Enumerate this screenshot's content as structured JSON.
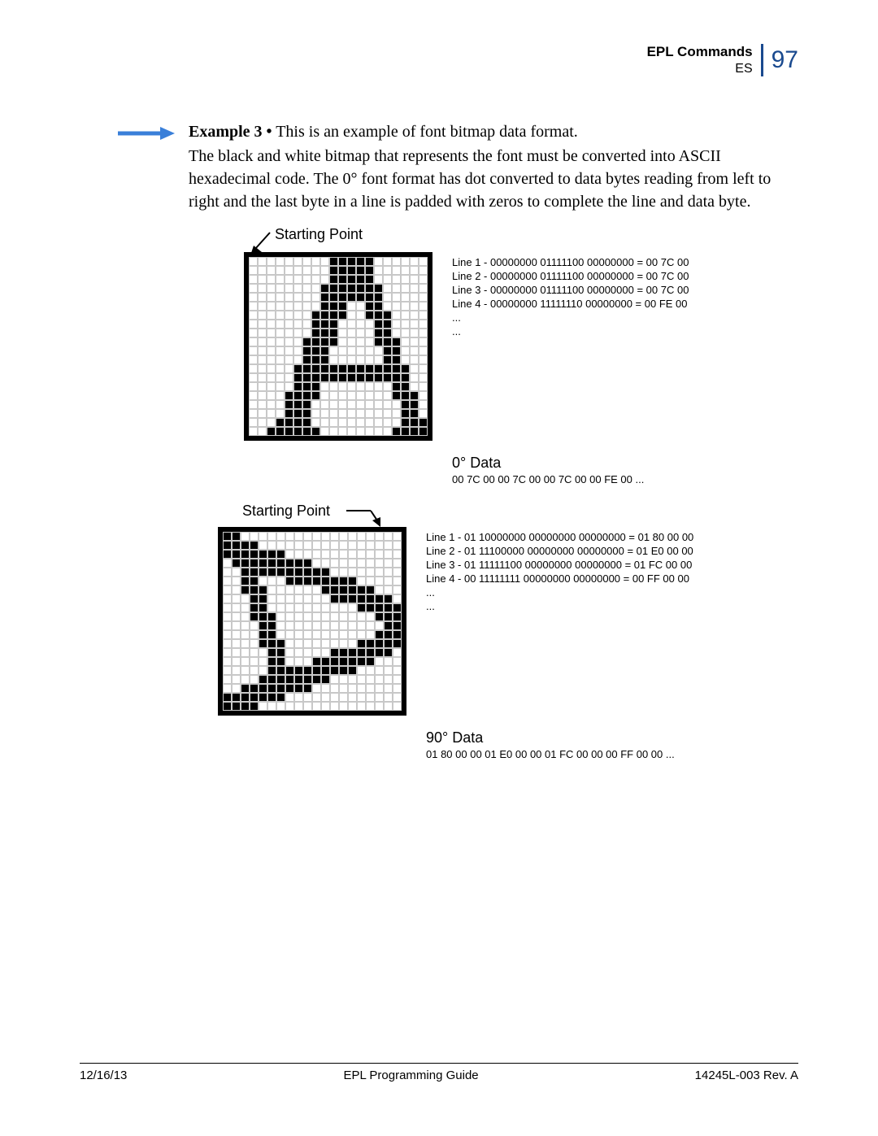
{
  "header": {
    "title": "EPL Commands",
    "sub": "ES",
    "page": "97"
  },
  "example": {
    "label": "Example 3 •",
    "text": "This is an example of font bitmap data format.",
    "body": "The black and white bitmap that represents the font must be converted into ASCII hexadecimal code. The 0° font format has dot converted to data bytes reading from left to right and the last byte in a line is padded with zeros to complete the line and data byte."
  },
  "fig0": {
    "starting_point": "Starting Point",
    "lines": {
      "l1": "Line 1 - 00000000 01111100 00000000 = 00 7C 00",
      "l2": "Line 2 - 00000000 01111100 00000000 = 00 7C 00",
      "l3": "Line 3 - 00000000 01111100 00000000 = 00 7C 00",
      "l4": "Line 4 - 00000000 11111110 00000000 = 00 FE 00",
      "l5": "...",
      "l6": "..."
    },
    "heading": "0° Data",
    "stream": "00 7C 00 00 7C 00 00 7C 00 00 FE 00 ..."
  },
  "fig90": {
    "starting_point": "Starting Point",
    "lines": {
      "l1": "Line 1 - 01 10000000 00000000 00000000 = 01 80 00 00",
      "l2": "Line 2 - 01 11100000 00000000 00000000 = 01 E0 00 00",
      "l3": "Line 3 - 01 11111100 00000000 00000000 = 01 FC 00 00",
      "l4": "Line 4 - 00 11111111 00000000 00000000 = 00 FF 00 00",
      "l5": "...",
      "l6": "..."
    },
    "heading": "90° Data",
    "stream": "01 80 00 00 01 E0 00 00 01 FC 00 00 00 FF 00 00 ..."
  },
  "footer": {
    "date": "12/16/13",
    "center": "EPL Programming Guide",
    "right": "14245L-003 Rev. A"
  },
  "colors": {
    "accent": "#1a4a8f",
    "grid": "#c8c8c8"
  },
  "grid0": {
    "cols": 20,
    "rows": 20,
    "on": [
      [
        0,
        9
      ],
      [
        0,
        10
      ],
      [
        0,
        11
      ],
      [
        0,
        12
      ],
      [
        0,
        13
      ],
      [
        1,
        9
      ],
      [
        1,
        10
      ],
      [
        1,
        11
      ],
      [
        1,
        12
      ],
      [
        1,
        13
      ],
      [
        2,
        9
      ],
      [
        2,
        10
      ],
      [
        2,
        11
      ],
      [
        2,
        12
      ],
      [
        2,
        13
      ],
      [
        3,
        8
      ],
      [
        3,
        9
      ],
      [
        3,
        10
      ],
      [
        3,
        11
      ],
      [
        3,
        12
      ],
      [
        3,
        13
      ],
      [
        3,
        14
      ],
      [
        4,
        8
      ],
      [
        4,
        9
      ],
      [
        4,
        10
      ],
      [
        4,
        11
      ],
      [
        4,
        12
      ],
      [
        4,
        13
      ],
      [
        4,
        14
      ],
      [
        5,
        8
      ],
      [
        5,
        9
      ],
      [
        5,
        10
      ],
      [
        5,
        13
      ],
      [
        5,
        14
      ],
      [
        6,
        7
      ],
      [
        6,
        8
      ],
      [
        6,
        9
      ],
      [
        6,
        10
      ],
      [
        6,
        13
      ],
      [
        6,
        14
      ],
      [
        6,
        15
      ],
      [
        7,
        7
      ],
      [
        7,
        8
      ],
      [
        7,
        9
      ],
      [
        7,
        14
      ],
      [
        7,
        15
      ],
      [
        8,
        7
      ],
      [
        8,
        8
      ],
      [
        8,
        9
      ],
      [
        8,
        14
      ],
      [
        8,
        15
      ],
      [
        9,
        6
      ],
      [
        9,
        7
      ],
      [
        9,
        8
      ],
      [
        9,
        9
      ],
      [
        9,
        14
      ],
      [
        9,
        15
      ],
      [
        9,
        16
      ],
      [
        10,
        6
      ],
      [
        10,
        7
      ],
      [
        10,
        8
      ],
      [
        10,
        15
      ],
      [
        10,
        16
      ],
      [
        11,
        6
      ],
      [
        11,
        7
      ],
      [
        11,
        8
      ],
      [
        11,
        15
      ],
      [
        11,
        16
      ],
      [
        12,
        5
      ],
      [
        12,
        6
      ],
      [
        12,
        7
      ],
      [
        12,
        8
      ],
      [
        12,
        9
      ],
      [
        12,
        10
      ],
      [
        12,
        11
      ],
      [
        12,
        12
      ],
      [
        12,
        13
      ],
      [
        12,
        14
      ],
      [
        12,
        15
      ],
      [
        12,
        16
      ],
      [
        12,
        17
      ],
      [
        13,
        5
      ],
      [
        13,
        6
      ],
      [
        13,
        7
      ],
      [
        13,
        8
      ],
      [
        13,
        9
      ],
      [
        13,
        10
      ],
      [
        13,
        11
      ],
      [
        13,
        12
      ],
      [
        13,
        13
      ],
      [
        13,
        14
      ],
      [
        13,
        15
      ],
      [
        13,
        16
      ],
      [
        13,
        17
      ],
      [
        14,
        5
      ],
      [
        14,
        6
      ],
      [
        14,
        7
      ],
      [
        14,
        16
      ],
      [
        14,
        17
      ],
      [
        15,
        4
      ],
      [
        15,
        5
      ],
      [
        15,
        6
      ],
      [
        15,
        7
      ],
      [
        15,
        16
      ],
      [
        15,
        17
      ],
      [
        15,
        18
      ],
      [
        16,
        4
      ],
      [
        16,
        5
      ],
      [
        16,
        6
      ],
      [
        16,
        17
      ],
      [
        16,
        18
      ],
      [
        17,
        4
      ],
      [
        17,
        5
      ],
      [
        17,
        6
      ],
      [
        17,
        17
      ],
      [
        17,
        18
      ],
      [
        18,
        3
      ],
      [
        18,
        4
      ],
      [
        18,
        5
      ],
      [
        18,
        6
      ],
      [
        18,
        17
      ],
      [
        18,
        18
      ],
      [
        18,
        19
      ],
      [
        19,
        2
      ],
      [
        19,
        3
      ],
      [
        19,
        4
      ],
      [
        19,
        5
      ],
      [
        19,
        6
      ],
      [
        19,
        7
      ],
      [
        19,
        16
      ],
      [
        19,
        17
      ],
      [
        19,
        18
      ],
      [
        19,
        19
      ]
    ]
  },
  "grid90": {
    "cols": 20,
    "rows": 20,
    "on": [
      [
        0,
        0
      ],
      [
        0,
        1
      ],
      [
        1,
        0
      ],
      [
        1,
        1
      ],
      [
        1,
        2
      ],
      [
        1,
        3
      ],
      [
        2,
        0
      ],
      [
        2,
        1
      ],
      [
        2,
        2
      ],
      [
        2,
        3
      ],
      [
        2,
        4
      ],
      [
        2,
        5
      ],
      [
        2,
        6
      ],
      [
        3,
        1
      ],
      [
        3,
        2
      ],
      [
        3,
        3
      ],
      [
        3,
        4
      ],
      [
        3,
        5
      ],
      [
        3,
        6
      ],
      [
        3,
        7
      ],
      [
        3,
        8
      ],
      [
        3,
        9
      ],
      [
        4,
        2
      ],
      [
        4,
        3
      ],
      [
        4,
        4
      ],
      [
        4,
        5
      ],
      [
        4,
        6
      ],
      [
        4,
        7
      ],
      [
        4,
        8
      ],
      [
        4,
        9
      ],
      [
        4,
        10
      ],
      [
        4,
        11
      ],
      [
        5,
        2
      ],
      [
        5,
        3
      ],
      [
        5,
        7
      ],
      [
        5,
        8
      ],
      [
        5,
        9
      ],
      [
        5,
        10
      ],
      [
        5,
        11
      ],
      [
        5,
        12
      ],
      [
        5,
        13
      ],
      [
        5,
        14
      ],
      [
        6,
        2
      ],
      [
        6,
        3
      ],
      [
        6,
        4
      ],
      [
        6,
        11
      ],
      [
        6,
        12
      ],
      [
        6,
        13
      ],
      [
        6,
        14
      ],
      [
        6,
        15
      ],
      [
        6,
        16
      ],
      [
        7,
        3
      ],
      [
        7,
        4
      ],
      [
        7,
        12
      ],
      [
        7,
        13
      ],
      [
        7,
        14
      ],
      [
        7,
        15
      ],
      [
        7,
        16
      ],
      [
        7,
        17
      ],
      [
        7,
        18
      ],
      [
        8,
        3
      ],
      [
        8,
        4
      ],
      [
        8,
        15
      ],
      [
        8,
        16
      ],
      [
        8,
        17
      ],
      [
        8,
        18
      ],
      [
        8,
        19
      ],
      [
        9,
        3
      ],
      [
        9,
        4
      ],
      [
        9,
        5
      ],
      [
        9,
        17
      ],
      [
        9,
        18
      ],
      [
        9,
        19
      ],
      [
        10,
        4
      ],
      [
        10,
        5
      ],
      [
        10,
        18
      ],
      [
        10,
        19
      ],
      [
        11,
        4
      ],
      [
        11,
        5
      ],
      [
        11,
        17
      ],
      [
        11,
        18
      ],
      [
        11,
        19
      ],
      [
        12,
        4
      ],
      [
        12,
        5
      ],
      [
        12,
        6
      ],
      [
        12,
        15
      ],
      [
        12,
        16
      ],
      [
        12,
        17
      ],
      [
        12,
        18
      ],
      [
        12,
        19
      ],
      [
        13,
        5
      ],
      [
        13,
        6
      ],
      [
        13,
        12
      ],
      [
        13,
        13
      ],
      [
        13,
        14
      ],
      [
        13,
        15
      ],
      [
        13,
        16
      ],
      [
        13,
        17
      ],
      [
        13,
        18
      ],
      [
        14,
        5
      ],
      [
        14,
        6
      ],
      [
        14,
        10
      ],
      [
        14,
        11
      ],
      [
        14,
        12
      ],
      [
        14,
        13
      ],
      [
        14,
        14
      ],
      [
        14,
        15
      ],
      [
        14,
        16
      ],
      [
        15,
        5
      ],
      [
        15,
        6
      ],
      [
        15,
        7
      ],
      [
        15,
        8
      ],
      [
        15,
        9
      ],
      [
        15,
        10
      ],
      [
        15,
        11
      ],
      [
        15,
        12
      ],
      [
        15,
        13
      ],
      [
        15,
        14
      ],
      [
        16,
        4
      ],
      [
        16,
        5
      ],
      [
        16,
        6
      ],
      [
        16,
        7
      ],
      [
        16,
        8
      ],
      [
        16,
        9
      ],
      [
        16,
        10
      ],
      [
        16,
        11
      ],
      [
        17,
        2
      ],
      [
        17,
        3
      ],
      [
        17,
        4
      ],
      [
        17,
        5
      ],
      [
        17,
        6
      ],
      [
        17,
        7
      ],
      [
        17,
        8
      ],
      [
        17,
        9
      ],
      [
        18,
        0
      ],
      [
        18,
        1
      ],
      [
        18,
        2
      ],
      [
        18,
        3
      ],
      [
        18,
        4
      ],
      [
        18,
        5
      ],
      [
        18,
        6
      ],
      [
        19,
        0
      ],
      [
        19,
        1
      ],
      [
        19,
        2
      ],
      [
        19,
        3
      ]
    ]
  }
}
